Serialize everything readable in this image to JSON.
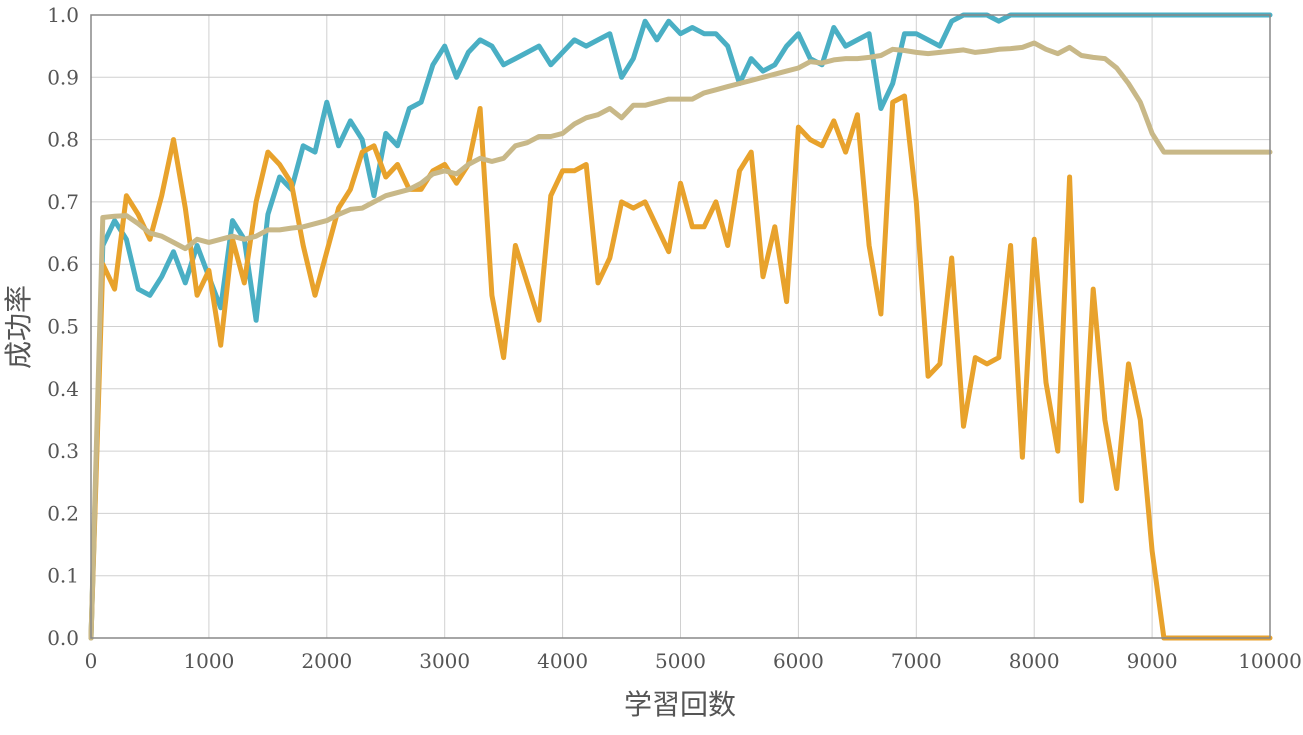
{
  "chart_data": {
    "type": "line",
    "title": "",
    "xlabel": "学習回数",
    "ylabel": "成功率",
    "xlim": [
      0,
      10000
    ],
    "ylim": [
      0,
      1
    ],
    "x_ticks": [
      "0",
      "1000",
      "2000",
      "3000",
      "4000",
      "5000",
      "6000",
      "7000",
      "8000",
      "9000",
      "10000"
    ],
    "y_ticks": [
      "0.0",
      "0.1",
      "0.2",
      "0.3",
      "0.4",
      "0.5",
      "0.6",
      "0.7",
      "0.8",
      "0.9",
      "1.0"
    ],
    "grid": true,
    "legend": "none",
    "x": [
      0,
      100,
      200,
      300,
      400,
      500,
      600,
      700,
      800,
      900,
      1000,
      1100,
      1200,
      1300,
      1400,
      1500,
      1600,
      1700,
      1800,
      1900,
      2000,
      2100,
      2200,
      2300,
      2400,
      2500,
      2600,
      2700,
      2800,
      2900,
      3000,
      3100,
      3200,
      3300,
      3400,
      3500,
      3600,
      3700,
      3800,
      3900,
      4000,
      4100,
      4200,
      4300,
      4400,
      4500,
      4600,
      4700,
      4800,
      4900,
      5000,
      5100,
      5200,
      5300,
      5400,
      5500,
      5600,
      5700,
      5800,
      5900,
      6000,
      6100,
      6200,
      6300,
      6400,
      6500,
      6600,
      6700,
      6800,
      6900,
      7000,
      7100,
      7200,
      7300,
      7400,
      7500,
      7600,
      7700,
      7800,
      7900,
      8000,
      8100,
      8200,
      8300,
      8400,
      8500,
      8600,
      8700,
      8800,
      8900,
      9000,
      9100,
      9200,
      9300,
      9400,
      9500,
      9600,
      9700,
      9800,
      9900,
      10000
    ],
    "series": [
      {
        "color": "#4aafc4",
        "values": [
          0.0,
          0.63,
          0.67,
          0.64,
          0.56,
          0.55,
          0.58,
          0.62,
          0.57,
          0.63,
          0.58,
          0.53,
          0.67,
          0.64,
          0.51,
          0.68,
          0.74,
          0.72,
          0.79,
          0.78,
          0.86,
          0.79,
          0.83,
          0.8,
          0.71,
          0.81,
          0.79,
          0.85,
          0.86,
          0.92,
          0.95,
          0.9,
          0.94,
          0.96,
          0.95,
          0.92,
          0.93,
          0.94,
          0.95,
          0.92,
          0.94,
          0.96,
          0.95,
          0.96,
          0.97,
          0.9,
          0.93,
          0.99,
          0.96,
          0.99,
          0.97,
          0.98,
          0.97,
          0.97,
          0.95,
          0.89,
          0.93,
          0.91,
          0.92,
          0.95,
          0.97,
          0.93,
          0.92,
          0.98,
          0.95,
          0.96,
          0.97,
          0.85,
          0.89,
          0.97,
          0.97,
          0.96,
          0.95,
          0.99,
          1.0,
          1.0,
          1.0,
          0.99,
          1.0,
          1.0,
          1.0,
          1.0,
          1.0,
          1.0,
          1.0,
          1.0,
          1.0,
          1.0,
          1.0,
          1.0,
          1.0,
          1.0,
          1.0,
          1.0,
          1.0,
          1.0,
          1.0,
          1.0,
          1.0,
          1.0,
          1.0
        ]
      },
      {
        "color": "#e8a22c",
        "values": [
          0.0,
          0.6,
          0.56,
          0.71,
          0.68,
          0.64,
          0.71,
          0.8,
          0.69,
          0.55,
          0.59,
          0.47,
          0.64,
          0.57,
          0.7,
          0.78,
          0.76,
          0.73,
          0.63,
          0.55,
          0.62,
          0.69,
          0.72,
          0.78,
          0.79,
          0.74,
          0.76,
          0.72,
          0.72,
          0.75,
          0.76,
          0.73,
          0.76,
          0.85,
          0.55,
          0.45,
          0.63,
          0.57,
          0.51,
          0.71,
          0.75,
          0.75,
          0.76,
          0.57,
          0.61,
          0.7,
          0.69,
          0.7,
          0.66,
          0.62,
          0.73,
          0.66,
          0.66,
          0.7,
          0.63,
          0.75,
          0.78,
          0.58,
          0.66,
          0.54,
          0.82,
          0.8,
          0.79,
          0.83,
          0.78,
          0.84,
          0.63,
          0.52,
          0.86,
          0.87,
          0.7,
          0.42,
          0.44,
          0.61,
          0.34,
          0.45,
          0.44,
          0.45,
          0.63,
          0.29,
          0.64,
          0.41,
          0.3,
          0.74,
          0.22,
          0.56,
          0.35,
          0.24,
          0.44,
          0.35,
          0.14,
          0.0,
          0.0,
          0.0,
          0.0,
          0.0,
          0.0,
          0.0,
          0.0,
          0.0,
          0.0
        ]
      },
      {
        "color": "#c8b888",
        "values": [
          0.0,
          0.675,
          0.677,
          0.678,
          0.665,
          0.65,
          0.645,
          0.635,
          0.625,
          0.64,
          0.635,
          0.64,
          0.645,
          0.64,
          0.645,
          0.655,
          0.655,
          0.658,
          0.66,
          0.665,
          0.67,
          0.68,
          0.688,
          0.69,
          0.7,
          0.71,
          0.715,
          0.72,
          0.73,
          0.745,
          0.75,
          0.745,
          0.76,
          0.77,
          0.765,
          0.77,
          0.79,
          0.795,
          0.805,
          0.805,
          0.81,
          0.825,
          0.835,
          0.84,
          0.85,
          0.835,
          0.855,
          0.855,
          0.86,
          0.865,
          0.865,
          0.865,
          0.875,
          0.88,
          0.885,
          0.89,
          0.895,
          0.9,
          0.905,
          0.91,
          0.915,
          0.925,
          0.923,
          0.928,
          0.93,
          0.93,
          0.932,
          0.935,
          0.945,
          0.943,
          0.94,
          0.938,
          0.94,
          0.942,
          0.944,
          0.94,
          0.942,
          0.945,
          0.946,
          0.948,
          0.955,
          0.945,
          0.938,
          0.948,
          0.935,
          0.932,
          0.93,
          0.915,
          0.89,
          0.86,
          0.81,
          0.78,
          0.78,
          0.78,
          0.78,
          0.78,
          0.78,
          0.78,
          0.78,
          0.78,
          0.78
        ]
      }
    ]
  }
}
